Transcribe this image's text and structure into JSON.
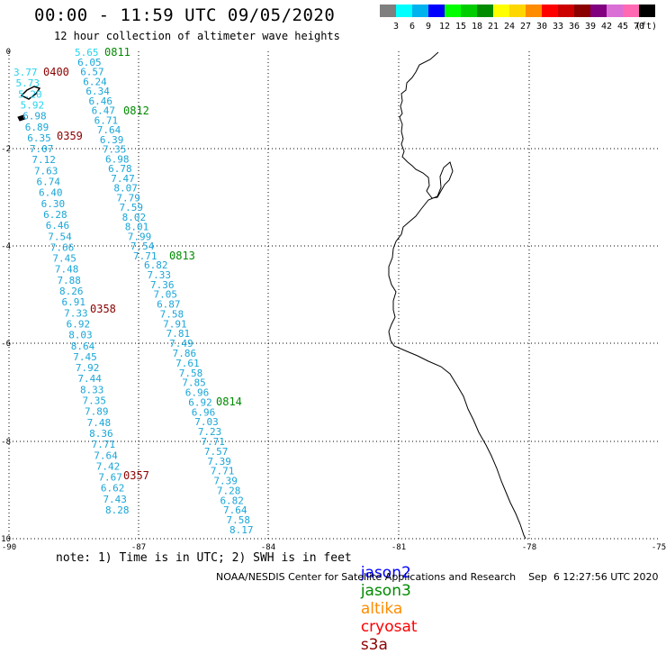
{
  "title": "00:00 - 11:59 UTC 09/05/2020",
  "subtitle": "12 hour collection of altimeter wave heights",
  "legend": {
    "unit": "(ft)",
    "bins": [
      {
        "label": "3",
        "color": "#7f7f7f"
      },
      {
        "label": "6",
        "color": "#00ffff"
      },
      {
        "label": "9",
        "color": "#00b2ee"
      },
      {
        "label": "12",
        "color": "#0000ff"
      },
      {
        "label": "15",
        "color": "#00ff00"
      },
      {
        "label": "18",
        "color": "#00cd00"
      },
      {
        "label": "21",
        "color": "#008b00"
      },
      {
        "label": "24",
        "color": "#ffff00"
      },
      {
        "label": "27",
        "color": "#ffd700"
      },
      {
        "label": "30",
        "color": "#ff8c00"
      },
      {
        "label": "33",
        "color": "#ff0000"
      },
      {
        "label": "36",
        "color": "#cd0000"
      },
      {
        "label": "39",
        "color": "#8b0000"
      },
      {
        "label": "42",
        "color": "#800080"
      },
      {
        "label": "45",
        "color": "#da70d6"
      },
      {
        "label": "70",
        "color": "#ff69b4"
      },
      {
        "label": "",
        "color": "#000000"
      }
    ]
  },
  "axes": {
    "lon_ticks": [
      "-90",
      "-87",
      "-84",
      "-81",
      "-78",
      "-75"
    ],
    "lat_ticks": [
      "0",
      "-2",
      "-4",
      "-6",
      "-8",
      "-10"
    ]
  },
  "colors": {
    "wave_value": "#1aa6d8",
    "wave_value_light": "#22d4ee",
    "time_jason3": "#008b00",
    "time_cryosat": "#8b0000"
  },
  "tracks": [
    {
      "time": "0811",
      "type": "jason3",
      "values": [
        "5.65",
        "6.05",
        "6.57",
        "6.24",
        "6.34",
        "6.46",
        "6.47",
        "6.71",
        "7.64",
        "6.39",
        "7.35",
        "6.98",
        "6.78",
        "7.47",
        "8.07",
        "7.79",
        "7.59",
        "8.02",
        "8.01",
        "7.99",
        "7.54",
        "7.71"
      ]
    },
    {
      "time": "0400",
      "type": "cryosat",
      "values": [
        "3.77",
        "5.73",
        "5.20",
        "5.92",
        "6.98",
        "6.89",
        "6.35",
        "7.07",
        "7.12",
        "7.63",
        "6.74",
        "6.40",
        "6.30",
        "6.28",
        "6.46",
        "7.54",
        "7.66",
        "7.45",
        "7.48",
        "7.88",
        "8.26",
        "6.91",
        "7.33",
        "6.92",
        "8.03",
        "8.64",
        "7.45",
        "7.92",
        "7.44",
        "8.33",
        "7.35",
        "7.89",
        "7.48",
        "8.36",
        "7.71",
        "7.64",
        "7.42",
        "7.67",
        "6.62",
        "7.43",
        "8.28"
      ]
    },
    {
      "time": "0813",
      "type": "jason3",
      "values": [
        "6.82",
        "7.33",
        "7.36",
        "7.05",
        "6.87",
        "7.58",
        "7.91",
        "7.81",
        "7.49",
        "7.86",
        "7.61",
        "7.58",
        "7.85",
        "6.96",
        "6.92",
        "6.96",
        "7.03",
        "7.23",
        "7.71",
        "7.57",
        "7.39",
        "7.71",
        "7.39",
        "7.28",
        "6.82",
        "7.64",
        "7.58",
        "8.17"
      ]
    }
  ],
  "time_labels": [
    {
      "text": "0811",
      "type": "jason3"
    },
    {
      "text": "0812",
      "type": "jason3"
    },
    {
      "text": "0813",
      "type": "jason3"
    },
    {
      "text": "0814",
      "type": "jason3"
    },
    {
      "text": "0400",
      "type": "cryosat"
    },
    {
      "text": "0359",
      "type": "cryosat"
    },
    {
      "text": "0358",
      "type": "cryosat"
    },
    {
      "text": "0357",
      "type": "cryosat"
    }
  ],
  "note": "note: 1) Time is in UTC; 2) SWH is in feet",
  "satellites": [
    {
      "name": "jason2",
      "color": "#0000ff"
    },
    {
      "name": "jason3",
      "color": "#008b00"
    },
    {
      "name": "altika",
      "color": "#ff8c00"
    },
    {
      "name": "cryosat",
      "color": "#ff0000"
    },
    {
      "name": "s3a",
      "color": "#8b0000"
    }
  ],
  "credit": "NOAA/NESDIS Center for Satellite Applications and Research    Sep  6 12:27:56 UTC 2020"
}
